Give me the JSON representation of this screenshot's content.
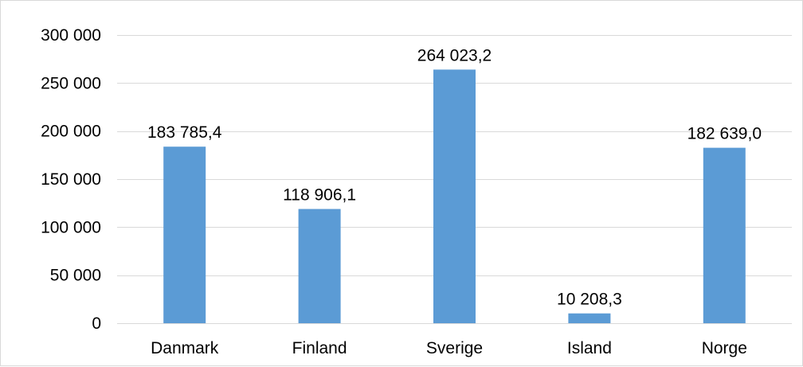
{
  "chart_data": {
    "type": "bar",
    "categories": [
      "Danmark",
      "Finland",
      "Sverige",
      "Island",
      "Norge"
    ],
    "values": [
      183785.4,
      118906.1,
      264023.2,
      10208.3,
      182639.0
    ],
    "data_labels": [
      "183 785,4",
      "118 906,1",
      "264 023,2",
      "10 208,3",
      "182 639,0"
    ],
    "y_ticks": [
      0,
      50000,
      100000,
      150000,
      200000,
      250000,
      300000
    ],
    "y_tick_labels": [
      "0",
      "50 000",
      "100 000",
      "150 000",
      "200 000",
      "250 000",
      "300 000"
    ],
    "ylim": [
      0,
      300000
    ],
    "grid": true,
    "legend": "none",
    "colors": {
      "bar": "#5b9bd5",
      "grid": "#d9d9d9",
      "border": "#d9d9d9",
      "text": "#000000"
    }
  }
}
